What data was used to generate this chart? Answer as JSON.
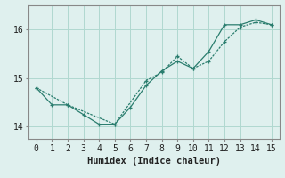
{
  "line1_x": [
    0,
    1,
    2,
    3,
    4,
    5,
    6,
    7,
    8,
    9,
    10,
    11,
    12,
    13,
    14,
    15
  ],
  "line1_y": [
    14.8,
    14.45,
    14.45,
    14.25,
    14.05,
    14.05,
    14.4,
    14.85,
    15.15,
    15.35,
    15.2,
    15.55,
    16.1,
    16.1,
    16.2,
    16.1
  ],
  "line2_x": [
    0,
    2,
    5,
    7,
    8,
    9,
    10,
    11,
    12,
    13,
    14,
    15
  ],
  "line2_y": [
    14.8,
    14.45,
    14.05,
    14.95,
    15.12,
    15.45,
    15.2,
    15.35,
    15.75,
    16.05,
    16.15,
    16.1
  ],
  "line_color": "#2a7d6e",
  "marker": "+",
  "marker_size": 3,
  "xlabel": "Humidex (Indice chaleur)",
  "xlim": [
    -0.5,
    15.5
  ],
  "ylim": [
    13.75,
    16.5
  ],
  "yticks": [
    14,
    15,
    16
  ],
  "xticks": [
    0,
    1,
    2,
    3,
    4,
    5,
    6,
    7,
    8,
    9,
    10,
    11,
    12,
    13,
    14,
    15
  ],
  "background_color": "#dff0ee",
  "grid_color": "#b0d8d0",
  "font_size": 7,
  "label_font_size": 7.5
}
